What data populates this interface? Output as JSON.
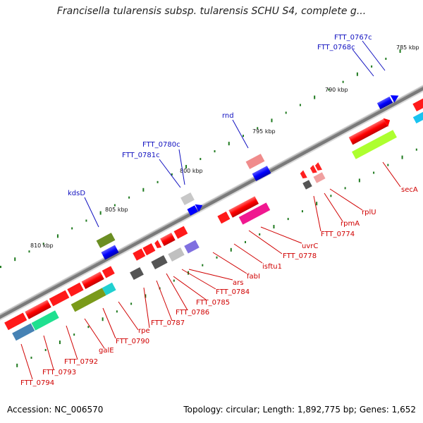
{
  "title": "Francisella tularensis subsp. tularensis SCHU S4, complete g...",
  "footer": {
    "accession": "Accession: NC_006570",
    "summary": "Topology: circular; Length: 1,892,775 bp; Genes: 1,652"
  },
  "colors": {
    "backbone": "#7a7a7a",
    "forward_feature": "#ff1a1a",
    "reverse_feature": "#0000ff",
    "upper_label": "#1010c0",
    "lower_label": "#d00000",
    "gc_dot": "#1f7a1f"
  },
  "scale_ticks": [
    {
      "label": "785 kbp"
    },
    {
      "label": "790 kbp"
    },
    {
      "label": "795 kbp"
    },
    {
      "label": "800 kbp"
    },
    {
      "label": "805 kbp"
    },
    {
      "label": "810 kbp"
    }
  ],
  "upper_labels": [
    "FTT_0767c",
    "FTT_0768c",
    "rnd",
    "FTT_0780c",
    "FTT_0781c",
    "kdsD"
  ],
  "lower_labels": [
    "secA",
    "rplU",
    "rpmA",
    "FTT_0774",
    "uvrC",
    "FTT_0778",
    "isftu1",
    "fabI",
    "ars",
    "FTT_0784",
    "FTT_0785",
    "FTT_0786",
    "FTT_0787",
    "rpe",
    "FTT_0790",
    "galE",
    "FTT_0792",
    "FTT_0793",
    "FTT_0794"
  ]
}
